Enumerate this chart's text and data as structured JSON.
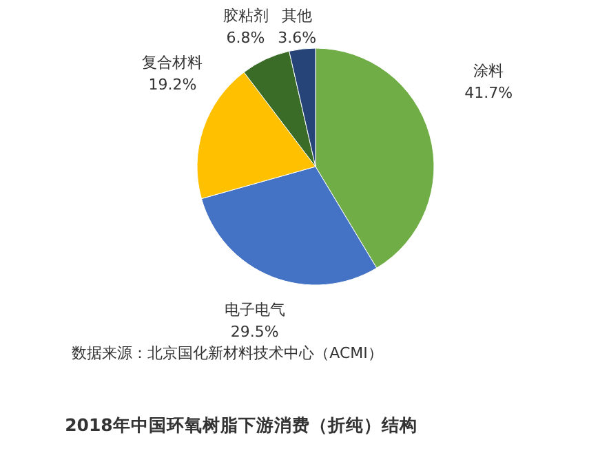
{
  "chart_data": {
    "type": "pie",
    "title": "2018年中国环氧树脂下游消费（折纯）结构",
    "annotations": [
      "数据来源：北京国化新材料技术中心（ACMI）"
    ],
    "categories": [
      "涂料",
      "电子电气",
      "复合材料",
      "胶粘剂",
      "其他"
    ],
    "values": [
      41.7,
      29.5,
      19.2,
      6.8,
      3.6
    ],
    "value_labels": [
      "41.7%",
      "29.5%",
      "19.2%",
      "6.8%",
      "3.6%"
    ],
    "colors": [
      "#70ad47",
      "#4472c4",
      "#ffc000",
      "#3a6b27",
      "#264478"
    ],
    "legend": false
  }
}
